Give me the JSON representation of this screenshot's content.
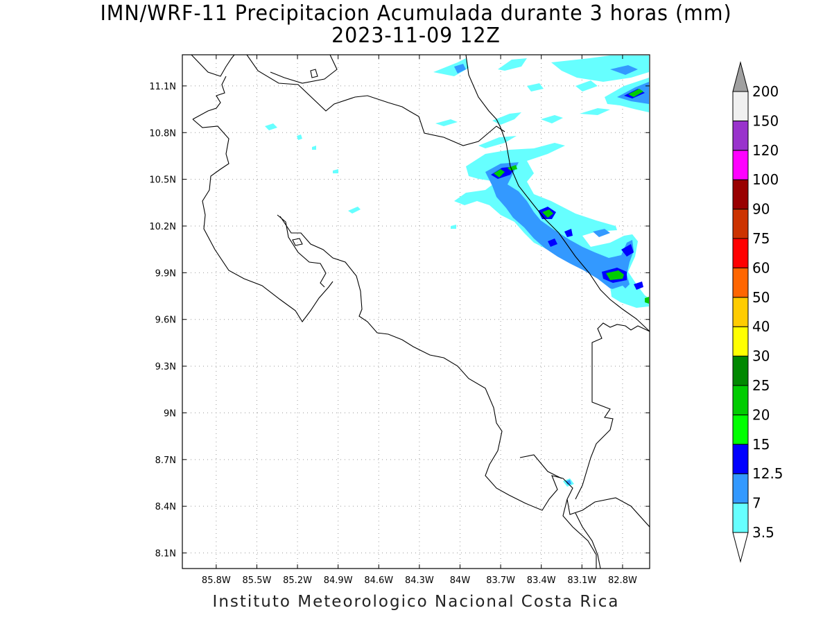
{
  "title": {
    "line1": "IMN/WRF-11 Precipitacion Acumulada durante 3 horas (mm)",
    "line2": "2023-11-09 12Z"
  },
  "credit": "Instituto Meteorologico Nacional Costa Rica",
  "map": {
    "lon_range": [
      -86.05,
      -82.6
    ],
    "lat_range": [
      8.0,
      11.3
    ],
    "grid": "dotted",
    "lon_ticks": [
      {
        "value": -85.8,
        "label": "85.8W"
      },
      {
        "value": -85.5,
        "label": "85.5W"
      },
      {
        "value": -85.2,
        "label": "85.2W"
      },
      {
        "value": -84.9,
        "label": "84.9W"
      },
      {
        "value": -84.6,
        "label": "84.6W"
      },
      {
        "value": -84.3,
        "label": "84.3W"
      },
      {
        "value": -84.0,
        "label": "84W"
      },
      {
        "value": -83.7,
        "label": "83.7W"
      },
      {
        "value": -83.4,
        "label": "83.4W"
      },
      {
        "value": -83.1,
        "label": "83.1W"
      },
      {
        "value": -82.8,
        "label": "82.8W"
      }
    ],
    "lat_ticks": [
      {
        "value": 11.1,
        "label": "11.1N"
      },
      {
        "value": 10.8,
        "label": "10.8N"
      },
      {
        "value": 10.5,
        "label": "10.5N"
      },
      {
        "value": 10.2,
        "label": "10.2N"
      },
      {
        "value": 9.9,
        "label": "9.9N"
      },
      {
        "value": 9.6,
        "label": "9.6N"
      },
      {
        "value": 9.3,
        "label": "9.3N"
      },
      {
        "value": 9.0,
        "label": "9N"
      },
      {
        "value": 8.7,
        "label": "8.7N"
      },
      {
        "value": 8.4,
        "label": "8.4N"
      },
      {
        "value": 8.1,
        "label": "8.1N"
      }
    ]
  },
  "colorbar": {
    "bins": [
      {
        "label": "3.5",
        "color": "#66ffff"
      },
      {
        "label": "7",
        "color": "#3399ff"
      },
      {
        "label": "12.5",
        "color": "#0000ff"
      },
      {
        "label": "15",
        "color": "#00ff00"
      },
      {
        "label": "20",
        "color": "#00cc00"
      },
      {
        "label": "25",
        "color": "#008800"
      },
      {
        "label": "30",
        "color": "#ffff00"
      },
      {
        "label": "40",
        "color": "#ffcc00"
      },
      {
        "label": "50",
        "color": "#ff6600"
      },
      {
        "label": "60",
        "color": "#ff0000"
      },
      {
        "label": "75",
        "color": "#cc3300"
      },
      {
        "label": "90",
        "color": "#990000"
      },
      {
        "label": "100",
        "color": "#ff00ff"
      },
      {
        "label": "120",
        "color": "#9933cc"
      },
      {
        "label": "150",
        "color": "#f0f0f0"
      },
      {
        "label": "200",
        "color": null
      }
    ],
    "over_color": "#a0a0a0",
    "under_color": "#ffffff"
  }
}
